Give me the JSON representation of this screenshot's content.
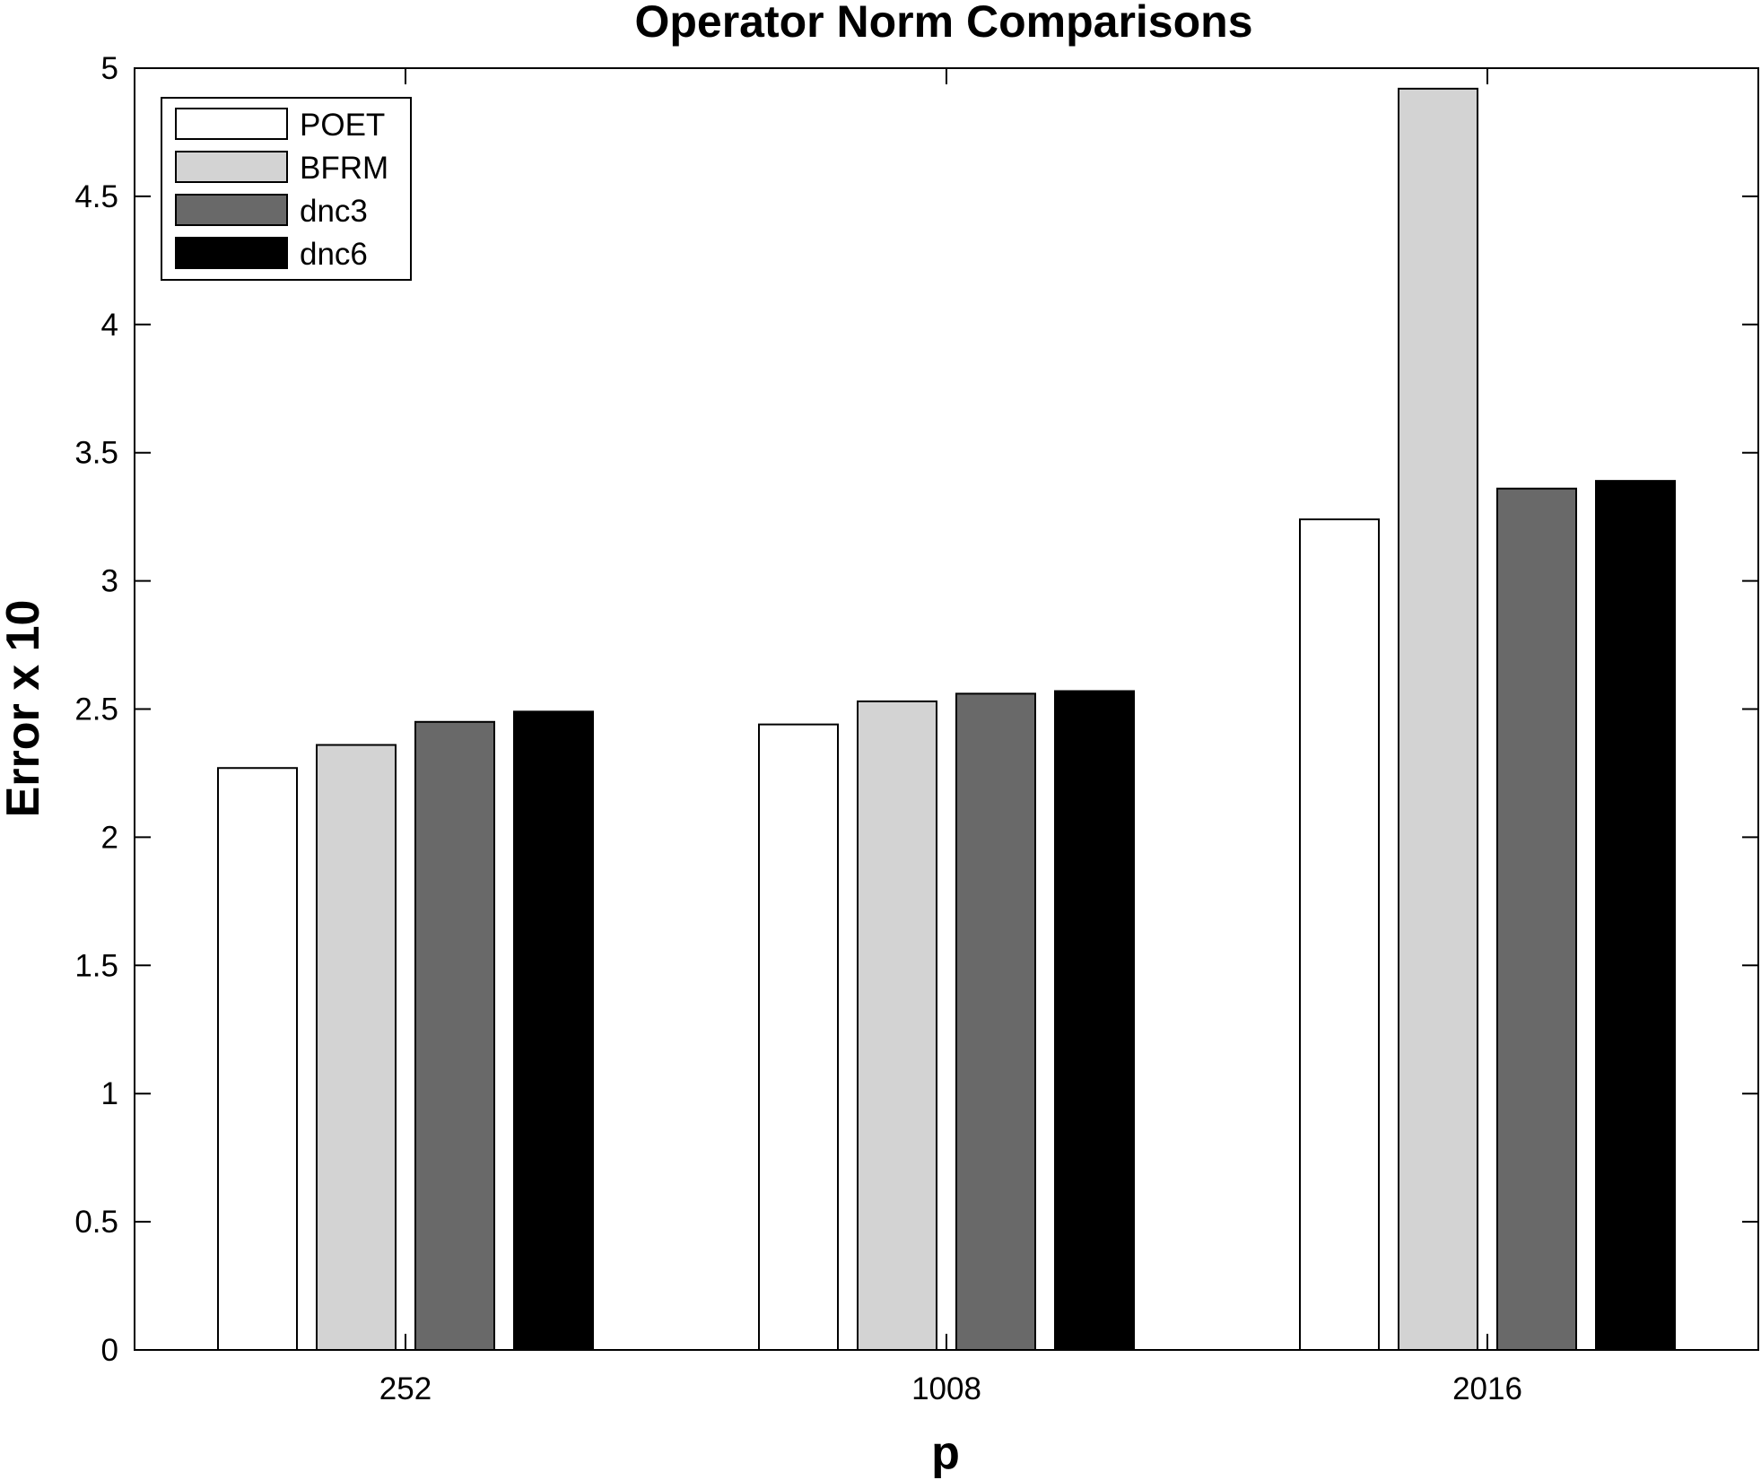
{
  "chart_data": {
    "type": "bar",
    "title": "Operator Norm Comparisons",
    "xlabel": "p",
    "ylabel": "Error x 10",
    "categories": [
      "252",
      "1008",
      "2016"
    ],
    "ylim": [
      0,
      5
    ],
    "yticks": [
      0,
      0.5,
      1,
      1.5,
      2,
      2.5,
      3,
      3.5,
      4,
      4.5,
      5
    ],
    "ytick_labels": [
      "0",
      "0.5",
      "1",
      "1.5",
      "2",
      "2.5",
      "3",
      "3.5",
      "4",
      "4.5",
      "5"
    ],
    "grid": false,
    "legend_position": "top-left",
    "series": [
      {
        "name": "POET",
        "color": "#ffffff",
        "values": [
          2.27,
          2.44,
          3.24
        ]
      },
      {
        "name": "BFRM",
        "color": "#d3d3d3",
        "values": [
          2.36,
          2.53,
          4.92
        ]
      },
      {
        "name": "dnc3",
        "color": "#696969",
        "values": [
          2.45,
          2.56,
          3.36
        ]
      },
      {
        "name": "dnc6",
        "color": "#000000",
        "values": [
          2.49,
          2.57,
          3.39
        ]
      }
    ]
  }
}
